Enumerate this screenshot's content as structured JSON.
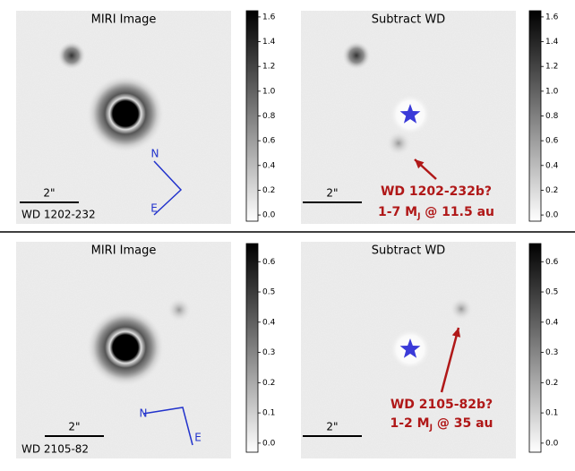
{
  "rows": [
    {
      "panels": [
        {
          "title": "MIRI Image",
          "scalebar": "2\"",
          "target": "WD 1202-232",
          "compass": [
            "N",
            "E"
          ]
        },
        {
          "title": "Subtract WD",
          "scalebar": "2\"",
          "annotation": {
            "name": "WD 1202-232b?",
            "mass": {
              "pre": "1-7 M",
              "sub": "J",
              "post": " @ 11.5 au"
            }
          }
        }
      ],
      "colorbar": {
        "lim": [
          -0.05,
          1.65
        ],
        "ticks": [
          {
            "value": 0,
            "label": "0.0"
          },
          0.2,
          0.4,
          0.6,
          0.8,
          {
            "value": 1,
            "label": "1.0"
          },
          1.2,
          1.4,
          1.6
        ]
      }
    },
    {
      "panels": [
        {
          "title": "MIRI Image",
          "scalebar": "2\"",
          "target": "WD 2105-82",
          "compass": [
            "N",
            "E"
          ]
        },
        {
          "title": "Subtract WD",
          "scalebar": "2\"",
          "annotation": {
            "name": "WD 2105-82b?",
            "mass": {
              "pre": "1-2 M",
              "sub": "J",
              "post": " @ 35 au"
            }
          }
        }
      ],
      "colorbar": {
        "lim": [
          -0.03,
          0.66
        ],
        "ticks": [
          {
            "value": 0,
            "label": "0.0"
          },
          0.1,
          0.2,
          0.3,
          0.4,
          0.5,
          0.6
        ]
      }
    }
  ]
}
